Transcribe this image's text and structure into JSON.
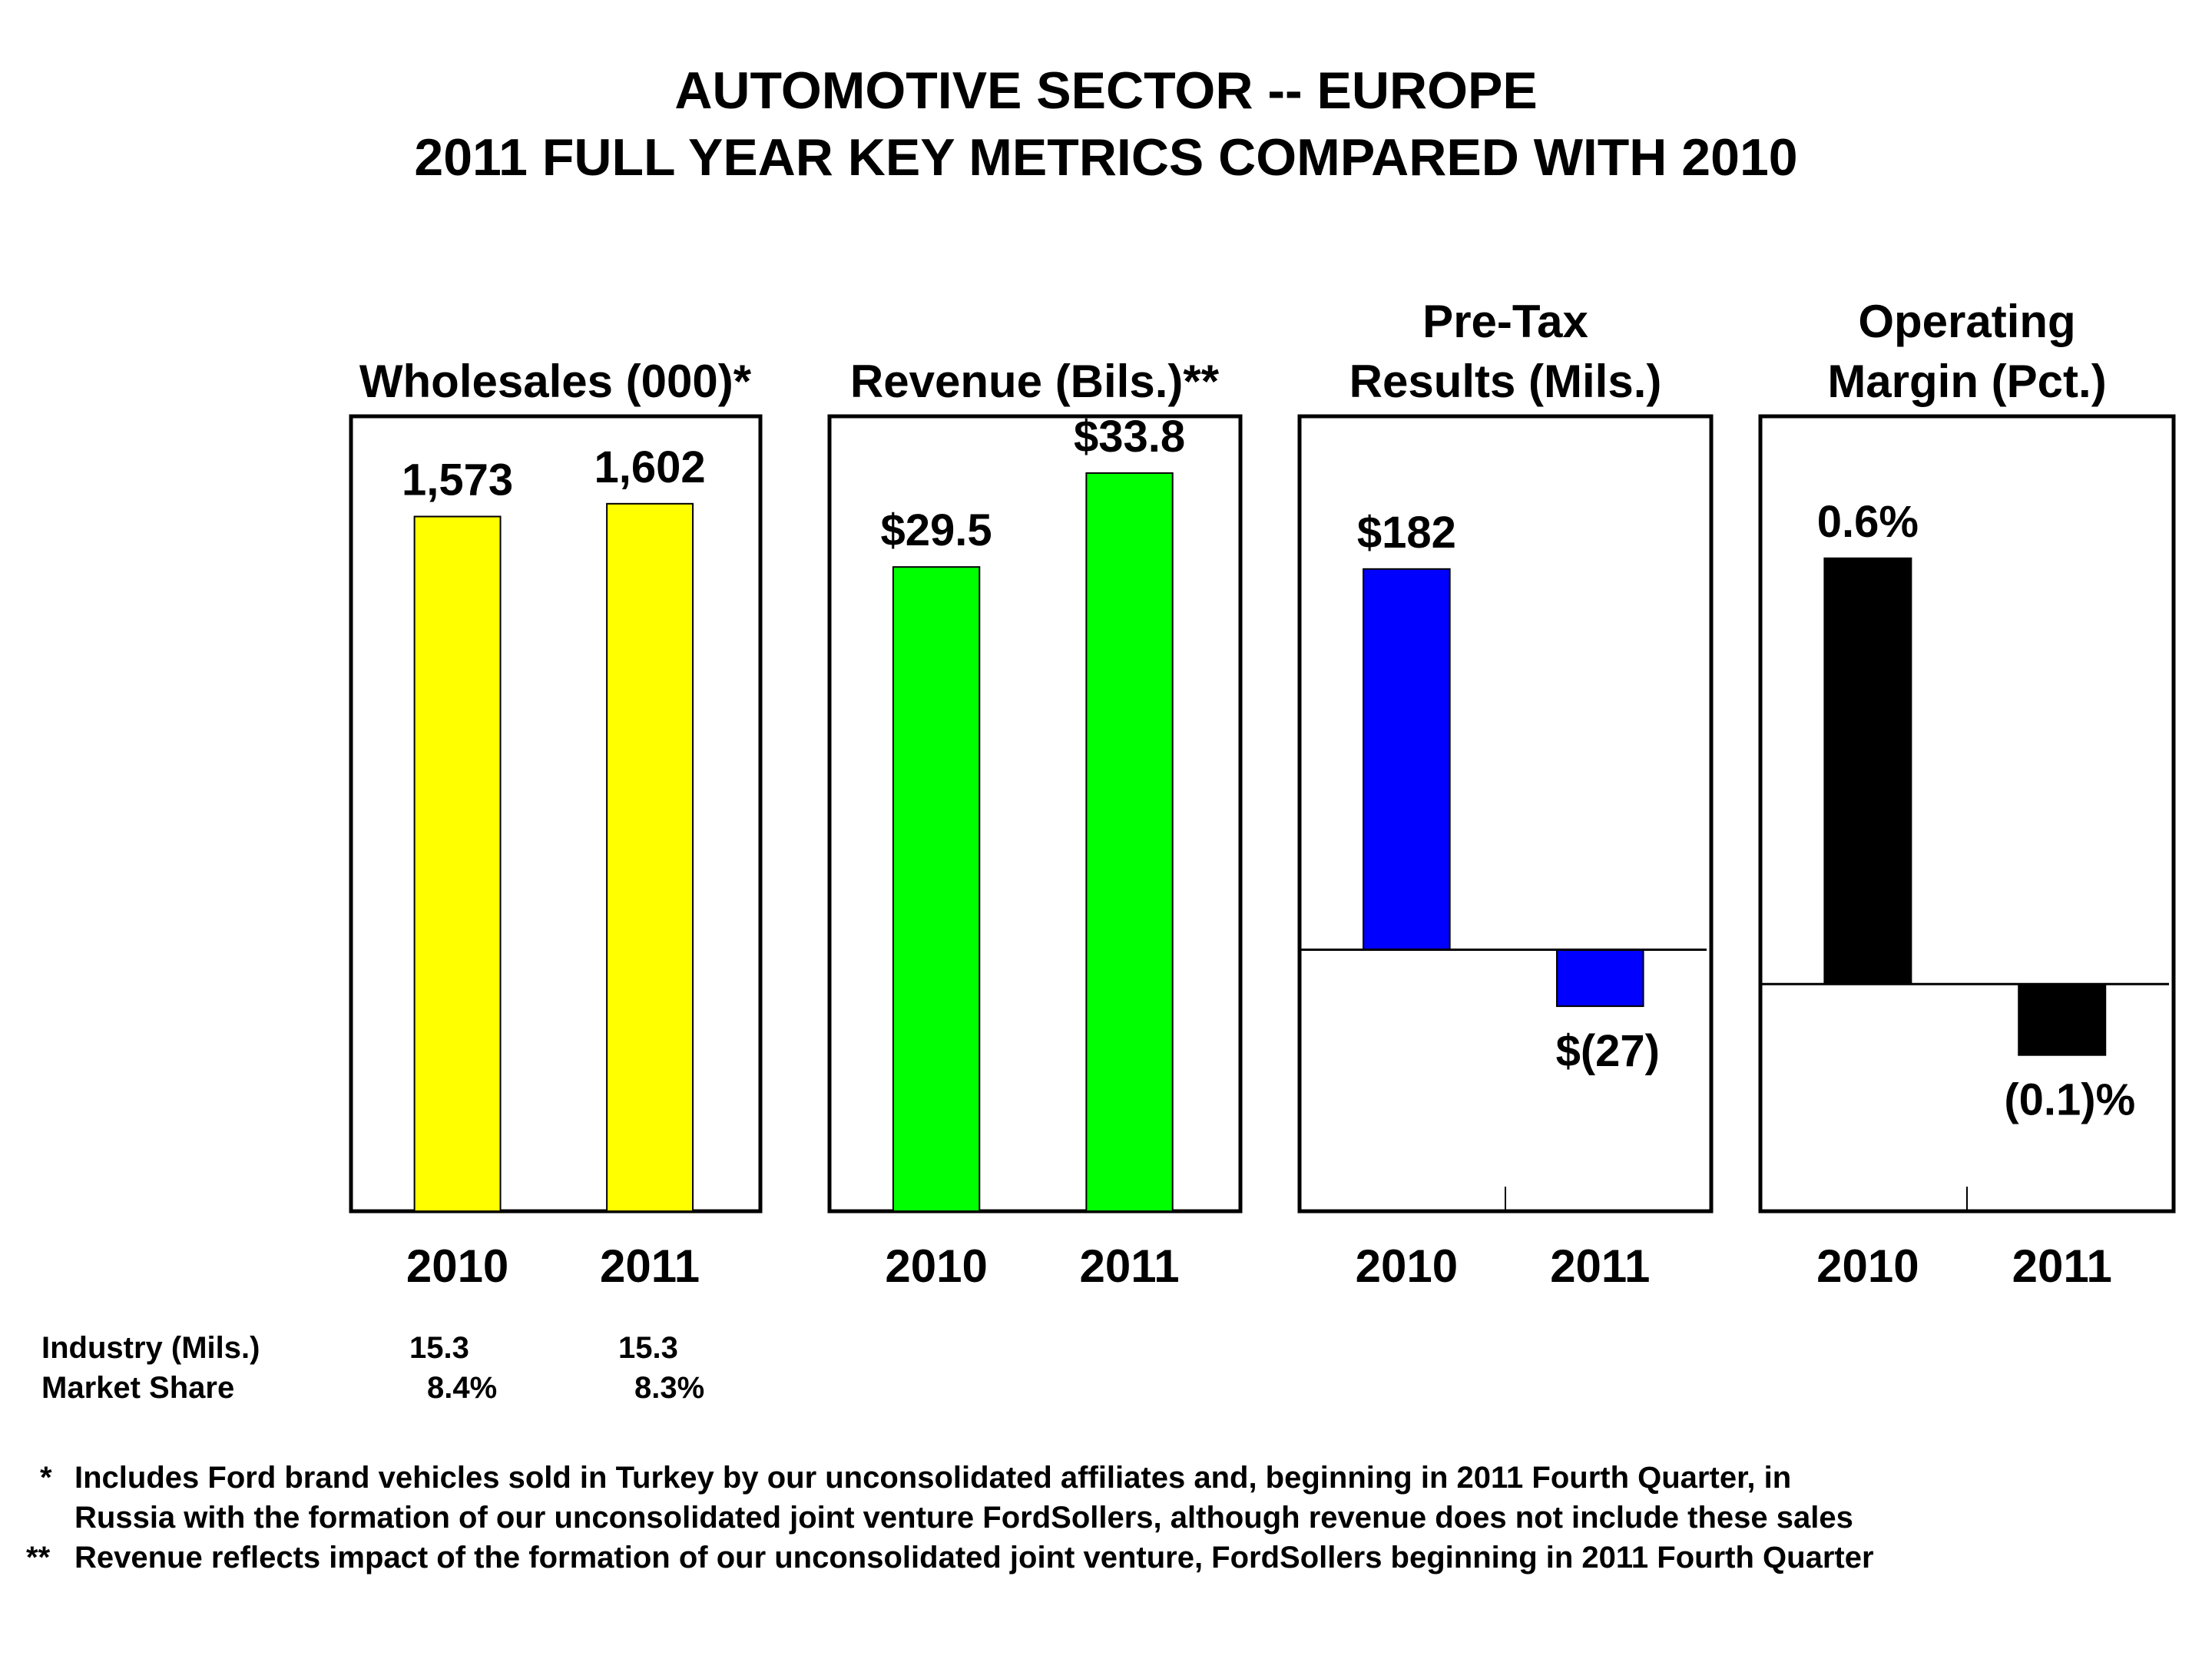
{
  "title_line1": "AUTOMOTIVE SECTOR -- EUROPE",
  "title_line2": "2011 FULL YEAR KEY METRICS COMPARED WITH 2010",
  "chart_data": [
    {
      "type": "bar",
      "title_lines": [
        "",
        "Wholesales (000)*"
      ],
      "categories": [
        "2010",
        "2011"
      ],
      "values": [
        1573,
        1602
      ],
      "labels": [
        "1,573",
        "1,602"
      ],
      "color": "#FFFF00",
      "ylim": [
        0,
        1800
      ]
    },
    {
      "type": "bar",
      "title_lines": [
        "",
        "Revenue (Bils.)**"
      ],
      "categories": [
        "2010",
        "2011"
      ],
      "values": [
        29.5,
        33.8
      ],
      "labels": [
        "$29.5",
        "$33.8"
      ],
      "color": "#00FF00",
      "ylim": [
        0,
        36.4
      ]
    },
    {
      "type": "bar",
      "title_lines": [
        "Pre-Tax",
        "Results (Mils.)"
      ],
      "categories": [
        "2010",
        "2011"
      ],
      "values": [
        182,
        -27
      ],
      "labels": [
        "$182",
        "$(27)"
      ],
      "color": "#0000FF",
      "ylim": [
        -125,
        255
      ]
    },
    {
      "type": "bar",
      "title_lines": [
        "Operating",
        "Margin (Pct.)"
      ],
      "categories": [
        "2010",
        "2011"
      ],
      "values": [
        0.6,
        -0.1
      ],
      "labels": [
        "0.6%",
        "(0.1)%"
      ],
      "color": "#000000",
      "ylim": [
        -0.32,
        0.8
      ]
    }
  ],
  "stats": {
    "rows": [
      {
        "label": "Industry (Mils.)",
        "v2010": "15.3",
        "v2011": "15.3"
      },
      {
        "label": "Market Share",
        "v2010": "8.4%",
        "v2011": "8.3%"
      }
    ]
  },
  "footnotes": [
    {
      "mark": "*",
      "text": "Includes Ford brand vehicles sold in Turkey by our unconsolidated affiliates and, beginning in 2011 Fourth Quarter, in"
    },
    {
      "mark": "",
      "text": "Russia with the formation of our unconsolidated joint venture FordSollers, although revenue does not include these sales"
    },
    {
      "mark": "**",
      "text": "Revenue reflects impact of the formation of our unconsolidated joint venture, FordSollers beginning in 2011 Fourth Quarter"
    }
  ]
}
